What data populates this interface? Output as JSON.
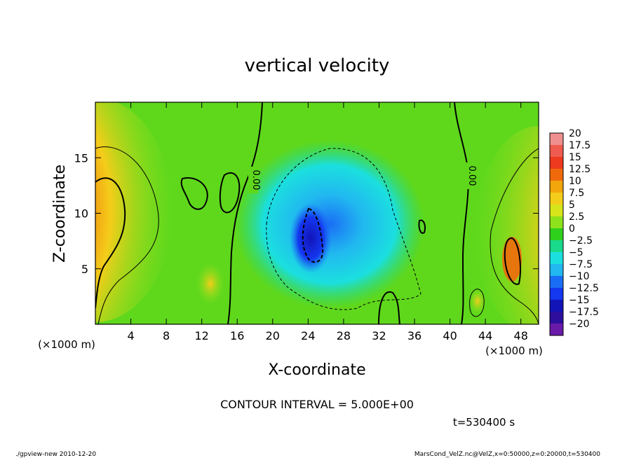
{
  "chart_data": {
    "type": "heatmap",
    "title": "vertical velocity",
    "xlabel": "X-coordinate",
    "ylabel": "Z-coordinate",
    "x_unit_left": "(×1000 m)",
    "x_unit_right": "(×1000 m)",
    "xlim": [
      0,
      50
    ],
    "ylim": [
      0,
      20
    ],
    "x_ticks": [
      4,
      8,
      12,
      16,
      20,
      24,
      28,
      32,
      36,
      40,
      44,
      48
    ],
    "y_ticks": [
      5,
      10,
      15
    ],
    "zero_contour_label": "0.00",
    "contour_interval_text": "CONTOUR INTERVAL = 5.000E+00",
    "time_text": "t=530400 s",
    "colorbar": {
      "labels": [
        "20",
        "17.5",
        "15",
        "12.5",
        "10",
        "7.5",
        "5",
        "2.5",
        "0",
        "−2.5",
        "−5",
        "−7.5",
        "−10",
        "−12.5",
        "−15",
        "−17.5",
        "−20"
      ],
      "colors": [
        "#f08f8f",
        "#ef5b4f",
        "#ee3a1e",
        "#f06a0c",
        "#f2a60b",
        "#f4cd1a",
        "#d6e51a",
        "#8ee21c",
        "#2fd01c",
        "#19d98a",
        "#1bdfdf",
        "#21b8f0",
        "#1a6ef5",
        "#1437f0",
        "#1214b8",
        "#2d0f9e",
        "#6a1aa8"
      ]
    },
    "footer_left": "./gpview-new 2010-12-20",
    "footer_right": "MarsCond_VelZ.nc@VelZ,x=0:50000,z=0:20000,t=530400"
  }
}
